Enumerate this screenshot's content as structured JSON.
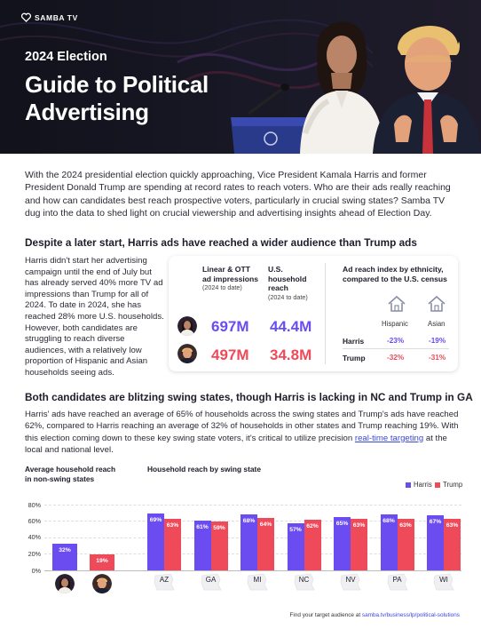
{
  "brand": {
    "name": "SAMBA TV"
  },
  "hero": {
    "year_line": "2024 Election",
    "title_line1": "Guide to Political",
    "title_line2": "Advertising"
  },
  "intro": "With the 2024 presidential election quickly approaching, Vice President Kamala Harris and former President Donald Trump are spending at record rates to reach voters. Who are their ads really reaching and how can candidates best reach prospective voters, particularly in crucial swing states? Samba TV dug into the data to shed light on crucial viewership and advertising insights ahead of Election Day.",
  "section1": {
    "title": "Despite a later start, Harris ads have reached a wider audience than Trump ads",
    "paragraph": "Harris didn't start her advertising campaign until the end of July but has already served 40% more TV ad impressions than Trump for all of 2024. To date in 2024, she has reached 28% more U.S. households. However, both candidates are struggling to reach diverse audiences, with a relatively low proportion of Hispanic and Asian households seeing ads.",
    "card": {
      "col1_heading_l1": "Linear & OTT",
      "col1_heading_l2": "ad impressions",
      "col1_sub": "(2024 to date)",
      "col2_heading_l1": "U.S.",
      "col2_heading_l2": "household",
      "col2_heading_l3": "reach",
      "col2_sub": "(2024 to date)",
      "harris_impressions": "697M",
      "harris_reach": "44.4M",
      "trump_impressions": "497M",
      "trump_reach": "34.8M",
      "ethnicity_title": "Ad reach index by ethnicity, compared to the U.S. census",
      "eth_col1": "Hispanic",
      "eth_col2": "Asian",
      "rows": [
        {
          "name": "Harris",
          "hispanic": "-23%",
          "asian": "-19%"
        },
        {
          "name": "Trump",
          "hispanic": "-32%",
          "asian": "-31%"
        }
      ]
    }
  },
  "section2": {
    "title": "Both candidates are blitzing swing states, though Harris is lacking in NC and Trump in GA",
    "para_part1": "Harris' ads have reached an average of 65% of households across the swing states and Trump's ads have reached 62%, compared to Harris reaching an average of 32% of households in other states and Trump reaching 19%. With this election coming down to these key swing state voters, it's critical to utilize precision ",
    "para_link": "real-time targeting",
    "para_part2": " at the local and national level."
  },
  "chart_data": [
    {
      "type": "bar",
      "title": "Average household reach in non-swing states",
      "title_l1": "Average household reach",
      "title_l2": "in non-swing states",
      "categories": [
        "Harris",
        "Trump"
      ],
      "values": [
        32,
        19
      ],
      "labels": [
        "32%",
        "19%"
      ],
      "ylim": [
        0,
        80
      ],
      "yticks": [
        "0%",
        "20%",
        "40%",
        "60%",
        "80%"
      ]
    },
    {
      "type": "bar",
      "title": "Household reach by swing state",
      "categories": [
        "AZ",
        "GA",
        "MI",
        "NC",
        "NV",
        "PA",
        "WI"
      ],
      "series": [
        {
          "name": "Harris",
          "values": [
            69,
            61,
            68,
            57,
            65,
            68,
            67
          ],
          "labels": [
            "69%",
            "61%",
            "68%",
            "57%",
            "65%",
            "68%",
            "67%"
          ]
        },
        {
          "name": "Trump",
          "values": [
            63,
            59,
            64,
            62,
            63,
            63,
            63
          ],
          "labels": [
            "63%",
            "59%",
            "64%",
            "62%",
            "63%",
            "63%",
            "63%"
          ]
        }
      ],
      "ylim": [
        0,
        80
      ],
      "legend": "top-right"
    }
  ],
  "colors": {
    "harris": "#6a4cf0",
    "trump": "#ee4a5a",
    "dark_bg": "#14141f"
  },
  "footer": {
    "text": "Find your target audience at ",
    "link": "samba.tv/business/lp/political-solutions"
  }
}
